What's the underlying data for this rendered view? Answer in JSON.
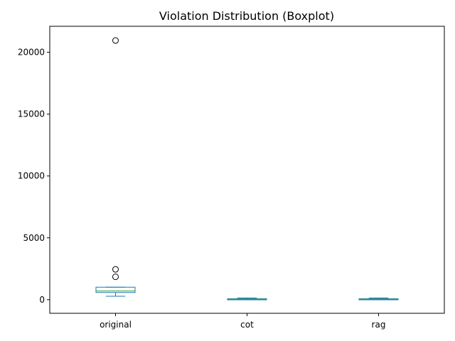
{
  "chart_data": {
    "type": "boxplot",
    "title": "Violation Distribution (Boxplot)",
    "xlabel": "",
    "ylabel": "",
    "categories": [
      "original",
      "cot",
      "rag"
    ],
    "ylim": [
      -1100,
      22100
    ],
    "yticks": [
      0,
      5000,
      10000,
      15000,
      20000
    ],
    "grid": false,
    "colors": {
      "box": "#1f77b4",
      "median": "#2ca02c",
      "flier": "#000000"
    },
    "boxes": [
      {
        "name": "original",
        "whisker_low": 280,
        "q1": 580,
        "median": 700,
        "q3": 1010,
        "whisker_high": 1010,
        "fliers": [
          1850,
          2450,
          20950
        ]
      },
      {
        "name": "cot",
        "whisker_low": 0,
        "q1": 5,
        "median": 40,
        "q3": 75,
        "whisker_high": 140,
        "fliers": []
      },
      {
        "name": "rag",
        "whisker_low": 0,
        "q1": 5,
        "median": 40,
        "q3": 75,
        "whisker_high": 140,
        "fliers": []
      }
    ]
  }
}
